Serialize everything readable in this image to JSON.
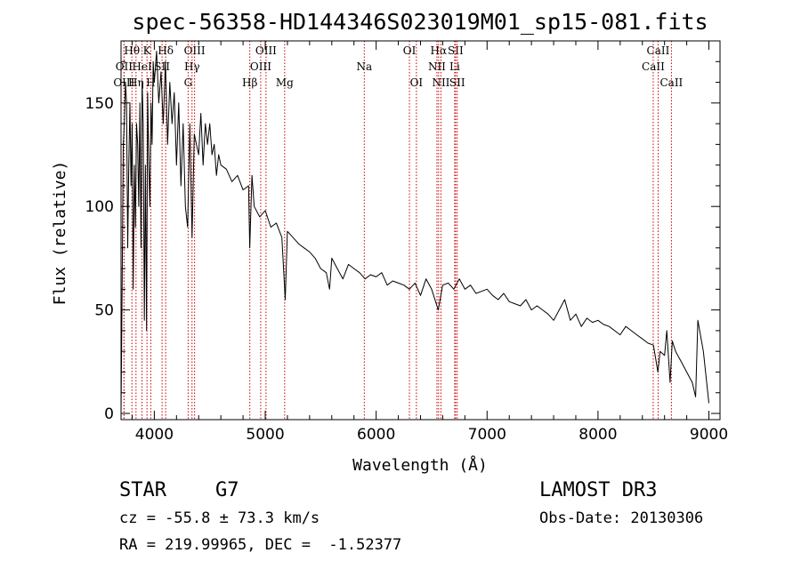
{
  "chart_data": {
    "type": "line",
    "title": "spec-56358-HD144346S023019M01_sp15-081.fits",
    "xlabel": "Wavelength (Å)",
    "ylabel": "Flux (relative)",
    "xlim": [
      3700,
      9100
    ],
    "ylim": [
      -3,
      180
    ],
    "xticks": [
      4000,
      5000,
      6000,
      7000,
      8000,
      9000
    ],
    "xtick_labels": [
      "4000",
      "5000",
      "6000",
      "7000",
      "8000",
      "9000"
    ],
    "yticks": [
      0,
      50,
      100,
      150
    ],
    "ytick_labels": [
      "0",
      "50",
      "100",
      "150"
    ],
    "grid": false,
    "legend": "none",
    "series": [
      {
        "name": "flux",
        "x": [
          3700,
          3710,
          3720,
          3730,
          3740,
          3750,
          3760,
          3770,
          3780,
          3790,
          3800,
          3810,
          3820,
          3830,
          3840,
          3850,
          3860,
          3870,
          3880,
          3890,
          3900,
          3910,
          3920,
          3930,
          3940,
          3950,
          3960,
          3970,
          3980,
          3990,
          4000,
          4020,
          4040,
          4060,
          4080,
          4100,
          4120,
          4140,
          4160,
          4180,
          4200,
          4220,
          4240,
          4260,
          4280,
          4300,
          4320,
          4340,
          4360,
          4380,
          4400,
          4420,
          4440,
          4460,
          4480,
          4500,
          4520,
          4540,
          4560,
          4580,
          4600,
          4650,
          4700,
          4750,
          4800,
          4850,
          4860,
          4880,
          4900,
          4950,
          5000,
          5050,
          5100,
          5150,
          5180,
          5200,
          5250,
          5300,
          5350,
          5400,
          5450,
          5500,
          5550,
          5580,
          5600,
          5650,
          5700,
          5750,
          5800,
          5850,
          5900,
          5950,
          6000,
          6050,
          6100,
          6150,
          6200,
          6250,
          6300,
          6350,
          6400,
          6450,
          6500,
          6560,
          6600,
          6650,
          6700,
          6750,
          6800,
          6850,
          6900,
          6950,
          7000,
          7050,
          7100,
          7150,
          7200,
          7250,
          7300,
          7350,
          7400,
          7450,
          7500,
          7550,
          7600,
          7650,
          7700,
          7750,
          7800,
          7850,
          7900,
          7950,
          8000,
          8050,
          8100,
          8150,
          8200,
          8250,
          8300,
          8350,
          8400,
          8450,
          8500,
          8540,
          8560,
          8600,
          8620,
          8650,
          8670,
          8700,
          8750,
          8800,
          8850,
          8880,
          8900,
          8950,
          9000
        ],
        "values": [
          0,
          60,
          130,
          140,
          160,
          150,
          80,
          120,
          150,
          110,
          140,
          60,
          120,
          90,
          140,
          130,
          100,
          150,
          80,
          160,
          140,
          45,
          120,
          40,
          155,
          120,
          100,
          150,
          130,
          170,
          160,
          175,
          150,
          165,
          140,
          170,
          130,
          160,
          140,
          155,
          120,
          150,
          110,
          140,
          100,
          90,
          140,
          85,
          135,
          130,
          125,
          145,
          120,
          140,
          130,
          140,
          125,
          130,
          115,
          125,
          120,
          118,
          112,
          115,
          108,
          110,
          80,
          115,
          100,
          95,
          98,
          90,
          92,
          85,
          55,
          88,
          85,
          82,
          80,
          78,
          75,
          70,
          68,
          60,
          75,
          70,
          65,
          72,
          70,
          68,
          65,
          67,
          66,
          68,
          62,
          64,
          63,
          62,
          60,
          63,
          57,
          65,
          60,
          50,
          62,
          63,
          60,
          65,
          60,
          62,
          58,
          59,
          60,
          57,
          55,
          58,
          54,
          53,
          52,
          55,
          50,
          52,
          50,
          48,
          45,
          50,
          55,
          45,
          48,
          42,
          46,
          44,
          45,
          43,
          42,
          40,
          38,
          42,
          40,
          38,
          36,
          34,
          33,
          20,
          30,
          28,
          40,
          15,
          35,
          30,
          25,
          20,
          15,
          8,
          45,
          30,
          5
        ]
      }
    ],
    "line_markers": [
      {
        "label": "Hθ",
        "wavelength": 3798,
        "row": 1
      },
      {
        "label": "OII",
        "wavelength": 3727,
        "row": 2
      },
      {
        "label": "OIII",
        "wavelength": 3727,
        "row": 3
      },
      {
        "label": "HeI",
        "wavelength": 3889,
        "row": 2
      },
      {
        "label": "Hη",
        "wavelength": 3835,
        "row": 3
      },
      {
        "label": "K",
        "wavelength": 3934,
        "row": 1
      },
      {
        "label": "H",
        "wavelength": 3968,
        "row": 3
      },
      {
        "label": "Hδ",
        "wavelength": 4102,
        "row": 1
      },
      {
        "label": "SII",
        "wavelength": 4070,
        "row": 2
      },
      {
        "label": "OIII",
        "wavelength": 4363,
        "row": 1
      },
      {
        "label": "Hγ",
        "wavelength": 4340,
        "row": 2
      },
      {
        "label": "G",
        "wavelength": 4305,
        "row": 3
      },
      {
        "label": "Hβ",
        "wavelength": 4861,
        "row": 3
      },
      {
        "label": "OIII",
        "wavelength": 5007,
        "row": 1
      },
      {
        "label": "OIII",
        "wavelength": 4959,
        "row": 2
      },
      {
        "label": "Mg",
        "wavelength": 5175,
        "row": 3
      },
      {
        "label": "Na",
        "wavelength": 5893,
        "row": 2
      },
      {
        "label": "OI",
        "wavelength": 6300,
        "row": 1
      },
      {
        "label": "OI",
        "wavelength": 6363,
        "row": 3
      },
      {
        "label": "Hα",
        "wavelength": 6563,
        "row": 1
      },
      {
        "label": "SII",
        "wavelength": 6716,
        "row": 1
      },
      {
        "label": "NII",
        "wavelength": 6548,
        "row": 2
      },
      {
        "label": "Li",
        "wavelength": 6708,
        "row": 2
      },
      {
        "label": "NII",
        "wavelength": 6584,
        "row": 3
      },
      {
        "label": "SII",
        "wavelength": 6731,
        "row": 3
      },
      {
        "label": "CaII",
        "wavelength": 8542,
        "row": 1
      },
      {
        "label": "CaII",
        "wavelength": 8498,
        "row": 2
      },
      {
        "label": "CaII",
        "wavelength": 8662,
        "row": 3
      }
    ]
  },
  "footer": {
    "object_type": "STAR",
    "subclass": "G7",
    "survey": "LAMOST DR3",
    "redshift": "cz = -55.8 ± 73.3 km/s",
    "obs_date": "Obs-Date: 20130306",
    "coords": "RA = 219.99965, DEC =  -1.52377"
  }
}
